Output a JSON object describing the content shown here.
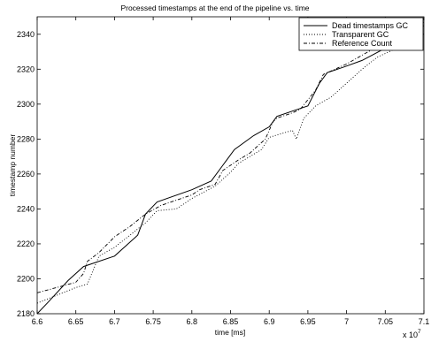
{
  "chart_data": {
    "type": "line",
    "title": "Processed timestamps at the end of the pipeline vs. time",
    "xlabel": "time [ms]",
    "ylabel": "timestamp number",
    "x_multiplier_label": "x 10",
    "x_multiplier_exponent": "7",
    "xlim": [
      6.6,
      7.1
    ],
    "ylim": [
      2180,
      2350
    ],
    "x_ticks": [
      6.6,
      6.65,
      6.7,
      6.75,
      6.8,
      6.85,
      6.9,
      6.95,
      7,
      7.05,
      7.1
    ],
    "x_tick_labels": [
      "6.6",
      "6.65",
      "6.7",
      "6.75",
      "6.8",
      "6.85",
      "6.9",
      "6.95",
      "7",
      "7.05",
      "7.1"
    ],
    "y_ticks": [
      2180,
      2200,
      2220,
      2240,
      2260,
      2280,
      2300,
      2320,
      2340
    ],
    "y_tick_labels": [
      "2180",
      "2200",
      "2220",
      "2240",
      "2260",
      "2280",
      "2300",
      "2320",
      "2340"
    ],
    "grid": false,
    "legend_position": "top-right",
    "series": [
      {
        "name": "Dead timestamps GC",
        "dash": "solid",
        "points": [
          [
            6.6,
            2180
          ],
          [
            6.615,
            2187
          ],
          [
            6.64,
            2199
          ],
          [
            6.66,
            2207
          ],
          [
            6.7,
            2213
          ],
          [
            6.73,
            2225
          ],
          [
            6.74,
            2237
          ],
          [
            6.755,
            2244
          ],
          [
            6.8,
            2251
          ],
          [
            6.825,
            2256
          ],
          [
            6.84,
            2265
          ],
          [
            6.855,
            2274
          ],
          [
            6.88,
            2282
          ],
          [
            6.9,
            2287
          ],
          [
            6.91,
            2293
          ],
          [
            6.93,
            2296
          ],
          [
            6.95,
            2299
          ],
          [
            6.965,
            2312
          ],
          [
            6.975,
            2318
          ],
          [
            6.995,
            2321
          ],
          [
            7.02,
            2325
          ],
          [
            7.05,
            2332
          ],
          [
            7.1,
            2349
          ]
        ]
      },
      {
        "name": "Transparent GC",
        "dash": "dotted",
        "points": [
          [
            6.6,
            2186
          ],
          [
            6.65,
            2195
          ],
          [
            6.665,
            2197
          ],
          [
            6.68,
            2213
          ],
          [
            6.7,
            2218
          ],
          [
            6.74,
            2232
          ],
          [
            6.755,
            2239
          ],
          [
            6.78,
            2240
          ],
          [
            6.8,
            2246
          ],
          [
            6.83,
            2253
          ],
          [
            6.85,
            2261
          ],
          [
            6.86,
            2266
          ],
          [
            6.89,
            2274
          ],
          [
            6.9,
            2281
          ],
          [
            6.93,
            2285
          ],
          [
            6.935,
            2280
          ],
          [
            6.945,
            2292
          ],
          [
            6.96,
            2299
          ],
          [
            6.98,
            2304
          ],
          [
            6.99,
            2308
          ],
          [
            7.02,
            2320
          ],
          [
            7.04,
            2327
          ],
          [
            7.06,
            2331
          ],
          [
            7.1,
            2345
          ]
        ]
      },
      {
        "name": "Reference Count",
        "dash": "dashdot",
        "points": [
          [
            6.6,
            2192
          ],
          [
            6.625,
            2195
          ],
          [
            6.65,
            2198
          ],
          [
            6.66,
            2203
          ],
          [
            6.665,
            2210
          ],
          [
            6.68,
            2215
          ],
          [
            6.7,
            2224
          ],
          [
            6.72,
            2230
          ],
          [
            6.74,
            2237
          ],
          [
            6.76,
            2242
          ],
          [
            6.78,
            2245
          ],
          [
            6.8,
            2248
          ],
          [
            6.81,
            2251
          ],
          [
            6.83,
            2254
          ],
          [
            6.84,
            2262
          ],
          [
            6.86,
            2268
          ],
          [
            6.875,
            2272
          ],
          [
            6.885,
            2276
          ],
          [
            6.895,
            2280
          ],
          [
            6.905,
            2290
          ],
          [
            6.91,
            2292
          ],
          [
            6.93,
            2295
          ],
          [
            6.94,
            2297
          ],
          [
            6.96,
            2308
          ],
          [
            6.97,
            2317
          ],
          [
            6.985,
            2320
          ],
          [
            7.0,
            2323
          ],
          [
            7.02,
            2328
          ],
          [
            7.04,
            2333
          ],
          [
            7.06,
            2337
          ],
          [
            7.1,
            2347
          ]
        ]
      }
    ]
  }
}
